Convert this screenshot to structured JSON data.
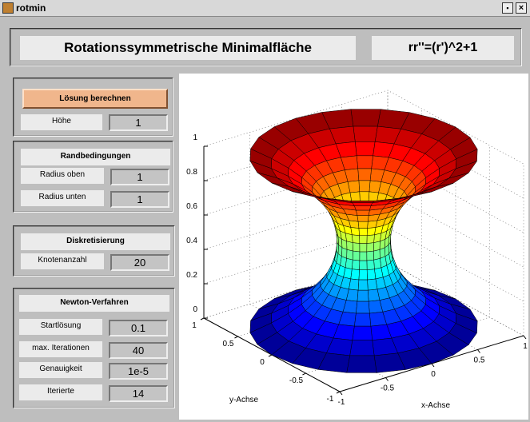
{
  "window": {
    "title": "rotmin"
  },
  "header": {
    "title": "Rotationssymmetrische Minimalfläche",
    "equation": "rr''=(r')^2+1"
  },
  "solve": {
    "button": "Lösung berechnen",
    "height_label": "Höhe",
    "height": "1"
  },
  "boundary": {
    "title": "Randbedingungen",
    "fields": [
      {
        "label": "Radius oben",
        "value": "1"
      },
      {
        "label": "Radius unten",
        "value": "1"
      }
    ]
  },
  "discretization": {
    "title": "Diskretisierung",
    "fields": [
      {
        "label": "Knotenanzahl",
        "value": "20"
      }
    ]
  },
  "newton": {
    "title": "Newton-Verfahren",
    "fields": [
      {
        "label": "Startlösung",
        "value": "0.1"
      },
      {
        "label": "max. Iterationen",
        "value": "40"
      },
      {
        "label": "Genauigkeit",
        "value": "1e-5"
      },
      {
        "label": "Iterierte",
        "value": "14"
      }
    ]
  },
  "plot": {
    "type": "surface",
    "xlabel": "x-Achse",
    "ylabel": "y-Achse",
    "xlim": [
      -1,
      1
    ],
    "ylim": [
      -1,
      1
    ],
    "zlim": [
      0,
      1
    ],
    "xticks": [
      -1,
      -0.5,
      0,
      0.5,
      1
    ],
    "yticks": [
      -1,
      -0.5,
      0,
      0.5,
      1
    ],
    "zticks": [
      0,
      0.2,
      0.4,
      0.6,
      0.8,
      1
    ],
    "grid": true,
    "colormap": "jet"
  }
}
